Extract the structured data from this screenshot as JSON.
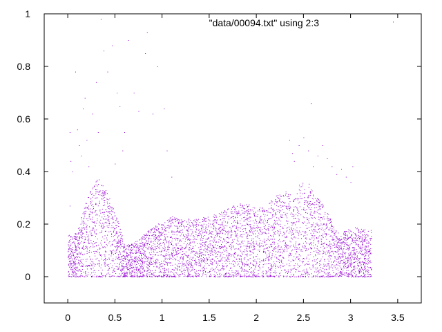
{
  "chart_data": {
    "type": "scatter",
    "title": "",
    "xlabel": "",
    "ylabel": "",
    "xlim": [
      -0.25,
      3.75
    ],
    "ylim": [
      -0.1,
      1.0
    ],
    "xticks": [
      0,
      0.5,
      1,
      1.5,
      2,
      2.5,
      3,
      3.5
    ],
    "xtick_labels": [
      "0",
      "0.5",
      "1",
      "1.5",
      "2",
      "2.5",
      "3",
      "3.5"
    ],
    "yticks": [
      0,
      0.2,
      0.4,
      0.6,
      0.8,
      1
    ],
    "ytick_labels": [
      "0",
      "0.2",
      "0.4",
      "0.6",
      "0.8",
      "1"
    ],
    "grid": false,
    "legend_placement": "top-right",
    "colors": {
      "series": "#9400d3",
      "axis": "#000000",
      "background": "#ffffff"
    },
    "series": [
      {
        "name": "\"data/00094.txt\" using 2:3",
        "x_range": [
          0.0,
          3.22
        ],
        "upper_envelope": [
          [
            0.0,
            0.16
          ],
          [
            0.1,
            0.17
          ],
          [
            0.2,
            0.3
          ],
          [
            0.28,
            0.37
          ],
          [
            0.35,
            0.38
          ],
          [
            0.42,
            0.32
          ],
          [
            0.5,
            0.25
          ],
          [
            0.56,
            0.18
          ],
          [
            0.6,
            0.12
          ],
          [
            0.7,
            0.13
          ],
          [
            0.8,
            0.16
          ],
          [
            0.9,
            0.19
          ],
          [
            1.0,
            0.21
          ],
          [
            1.1,
            0.23
          ],
          [
            1.3,
            0.22
          ],
          [
            1.5,
            0.23
          ],
          [
            1.65,
            0.25
          ],
          [
            1.8,
            0.28
          ],
          [
            1.9,
            0.28
          ],
          [
            2.0,
            0.26
          ],
          [
            2.1,
            0.27
          ],
          [
            2.2,
            0.31
          ],
          [
            2.3,
            0.33
          ],
          [
            2.4,
            0.3
          ],
          [
            2.45,
            0.35
          ],
          [
            2.5,
            0.37
          ],
          [
            2.55,
            0.36
          ],
          [
            2.6,
            0.32
          ],
          [
            2.7,
            0.28
          ],
          [
            2.8,
            0.21
          ],
          [
            2.88,
            0.16
          ],
          [
            2.95,
            0.18
          ],
          [
            3.05,
            0.19
          ],
          [
            3.15,
            0.18
          ],
          [
            3.22,
            0.18
          ]
        ],
        "outliers": [
          [
            0.02,
            0.55
          ],
          [
            0.03,
            0.44
          ],
          [
            0.05,
            0.4
          ],
          [
            0.02,
            0.27
          ],
          [
            0.08,
            0.78
          ],
          [
            0.1,
            0.56
          ],
          [
            0.12,
            0.5
          ],
          [
            0.14,
            0.46
          ],
          [
            0.16,
            0.64
          ],
          [
            0.18,
            0.68
          ],
          [
            0.2,
            0.52
          ],
          [
            0.22,
            0.42
          ],
          [
            0.3,
            0.74
          ],
          [
            0.35,
            0.98
          ],
          [
            0.38,
            0.86
          ],
          [
            0.42,
            0.78
          ],
          [
            0.47,
            0.88
          ],
          [
            0.52,
            0.7
          ],
          [
            0.55,
            0.65
          ],
          [
            0.6,
            0.55
          ],
          [
            0.64,
            0.9
          ],
          [
            0.7,
            0.7
          ],
          [
            0.75,
            0.63
          ],
          [
            0.82,
            0.85
          ],
          [
            0.84,
            0.93
          ],
          [
            0.9,
            0.62
          ],
          [
            0.95,
            0.8
          ],
          [
            1.02,
            0.64
          ],
          [
            1.05,
            0.48
          ],
          [
            1.1,
            0.38
          ],
          [
            0.58,
            0.48
          ],
          [
            0.5,
            0.43
          ],
          [
            0.32,
            0.55
          ],
          [
            0.26,
            0.62
          ],
          [
            2.35,
            0.52
          ],
          [
            2.38,
            0.47
          ],
          [
            2.4,
            0.44
          ],
          [
            2.45,
            0.5
          ],
          [
            2.5,
            0.53
          ],
          [
            2.55,
            0.48
          ],
          [
            2.6,
            0.42
          ],
          [
            2.65,
            0.46
          ],
          [
            2.7,
            0.5
          ],
          [
            2.75,
            0.45
          ],
          [
            2.8,
            0.42
          ],
          [
            2.85,
            0.39
          ],
          [
            2.9,
            0.41
          ],
          [
            2.95,
            0.38
          ],
          [
            3.0,
            0.36
          ],
          [
            3.02,
            0.42
          ],
          [
            2.58,
            0.66
          ],
          [
            3.45,
            0.97
          ]
        ]
      }
    ]
  }
}
